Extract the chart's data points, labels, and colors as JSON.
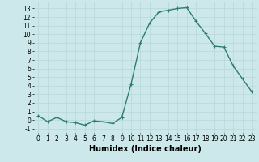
{
  "x": [
    0,
    1,
    2,
    3,
    4,
    5,
    6,
    7,
    8,
    9,
    10,
    11,
    12,
    13,
    14,
    15,
    16,
    17,
    18,
    19,
    20,
    21,
    22,
    23
  ],
  "y": [
    0.5,
    -0.2,
    0.3,
    -0.2,
    -0.3,
    -0.6,
    -0.1,
    -0.2,
    -0.4,
    0.3,
    4.2,
    9.0,
    11.3,
    12.6,
    12.8,
    13.0,
    13.1,
    11.5,
    10.1,
    8.6,
    8.5,
    6.3,
    4.8,
    3.3
  ],
  "line_color": "#2e7d6e",
  "marker": "+",
  "markersize": 3,
  "linewidth": 1.0,
  "xlabel": "Humidex (Indice chaleur)",
  "xlabel_fontsize": 7,
  "xlabel_fontweight": "bold",
  "ylabel_ticks": [
    -1,
    0,
    1,
    2,
    3,
    4,
    5,
    6,
    7,
    8,
    9,
    10,
    11,
    12,
    13
  ],
  "xticks": [
    0,
    1,
    2,
    3,
    4,
    5,
    6,
    7,
    8,
    9,
    10,
    11,
    12,
    13,
    14,
    15,
    16,
    17,
    18,
    19,
    20,
    21,
    22,
    23
  ],
  "xlim": [
    -0.5,
    23.5
  ],
  "ylim": [
    -1.5,
    13.8
  ],
  "background_color": "#cce8ea",
  "grid_color": "#b8d8da",
  "tick_fontsize": 5.5
}
